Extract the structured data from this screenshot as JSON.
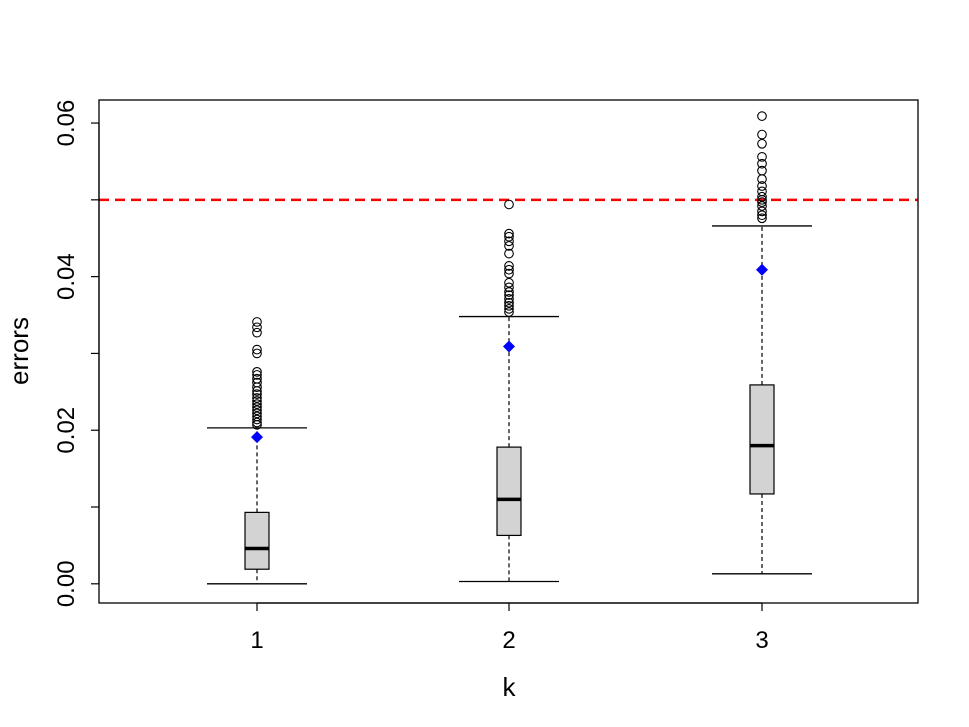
{
  "chart_data": {
    "type": "box",
    "title": "",
    "xlabel": "k",
    "ylabel": "errors",
    "ylim": [
      -0.0025,
      0.063
    ],
    "categories": [
      "1",
      "2",
      "3"
    ],
    "yticks": [
      0.0,
      0.02,
      0.04,
      0.06
    ],
    "yticklabels": [
      "0.00",
      "0.02",
      "0.04",
      "0.06"
    ],
    "xticklabels": [
      "1",
      "2",
      "3"
    ],
    "reference_line": {
      "y": 0.05,
      "color": "#ff0000",
      "style": "dashed"
    },
    "box_fill": "#d3d3d3",
    "mean_marker_color": "#0000ff",
    "boxes": [
      {
        "category": "1",
        "whisker_low": 0.0,
        "q1": 0.0019,
        "median": 0.0046,
        "q3": 0.0093,
        "whisker_high": 0.0203,
        "mean": 0.0191,
        "outliers": [
          0.0341,
          0.0334,
          0.0327,
          0.0305,
          0.03,
          0.0276,
          0.0272,
          0.0267,
          0.0262,
          0.0256,
          0.0251,
          0.0247,
          0.0242,
          0.0238,
          0.0234,
          0.023,
          0.0226,
          0.0222,
          0.0218,
          0.0214,
          0.021,
          0.0207
        ]
      },
      {
        "category": "2",
        "whisker_low": 0.0003,
        "q1": 0.0063,
        "median": 0.011,
        "q3": 0.0178,
        "whisker_high": 0.0348,
        "mean": 0.0309,
        "outliers": [
          0.0494,
          0.0456,
          0.0452,
          0.0446,
          0.044,
          0.043,
          0.0414,
          0.0409,
          0.0404,
          0.0392,
          0.0386,
          0.038,
          0.0376,
          0.0371,
          0.0366,
          0.0362,
          0.0358,
          0.0354
        ]
      },
      {
        "category": "3",
        "whisker_low": 0.0013,
        "q1": 0.0117,
        "median": 0.018,
        "q3": 0.0259,
        "whisker_high": 0.0466,
        "mean": 0.0409,
        "outliers": [
          0.0609,
          0.0585,
          0.0573,
          0.0556,
          0.0547,
          0.0538,
          0.0527,
          0.0518,
          0.0511,
          0.0504,
          0.05,
          0.0497,
          0.0492,
          0.0485,
          0.048,
          0.0476
        ]
      }
    ]
  }
}
